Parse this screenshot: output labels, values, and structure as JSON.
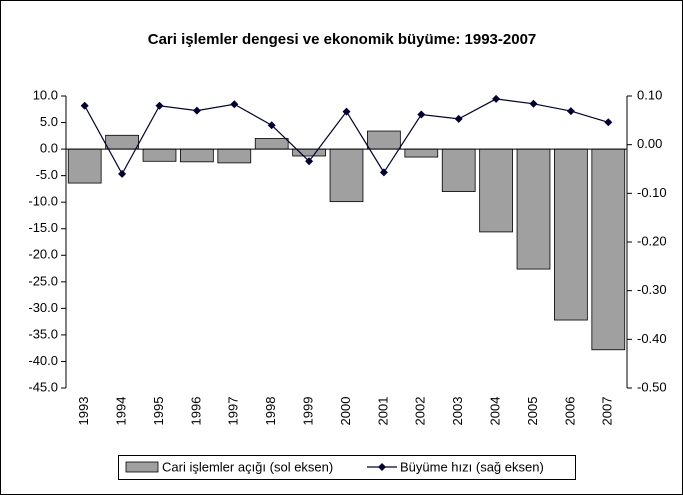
{
  "chart_data": {
    "type": "bar-line",
    "title": "Cari işlemler dengesi ve ekonomik büyüme: 1993-2007",
    "categories": [
      "1993",
      "1994",
      "1995",
      "1996",
      "1997",
      "1998",
      "1999",
      "2000",
      "2001",
      "2002",
      "2003",
      "2004",
      "2005",
      "2006",
      "2007"
    ],
    "series": [
      {
        "name": "Cari işlemler açığı (sol eksen)",
        "type": "bar",
        "color": "#a0a0a0",
        "values": [
          -6.4,
          2.6,
          -2.3,
          -2.4,
          -2.6,
          2.0,
          -1.3,
          -9.9,
          3.4,
          -1.5,
          -8.0,
          -15.6,
          -22.6,
          -32.2,
          -37.8
        ]
      },
      {
        "name": "Büyüme hızı (sağ eksen)",
        "type": "line",
        "axis": "y2",
        "color": "#000033",
        "values": [
          0.08,
          -0.06,
          0.08,
          0.07,
          0.083,
          0.04,
          -0.034,
          0.068,
          -0.057,
          0.062,
          0.053,
          0.094,
          0.084,
          0.069,
          0.046
        ]
      }
    ],
    "ylim": [
      -45,
      10
    ],
    "yticks": [
      {
        "value": 10,
        "label": "10.0"
      },
      {
        "value": 5,
        "label": "5.0"
      },
      {
        "value": 0,
        "label": "0.0"
      },
      {
        "value": -5,
        "label": "-5.0"
      },
      {
        "value": -10,
        "label": "-10.0"
      },
      {
        "value": -15,
        "label": "-15.0"
      },
      {
        "value": -20,
        "label": "-20.0"
      },
      {
        "value": -25,
        "label": "-25.0"
      },
      {
        "value": -30,
        "label": "-30.0"
      },
      {
        "value": -35,
        "label": "-35.0"
      },
      {
        "value": -40,
        "label": "-40.0"
      },
      {
        "value": -45,
        "label": "-45.0"
      }
    ],
    "y2lim": [
      -0.5,
      0.1
    ],
    "y2ticks": [
      {
        "value": 0.1,
        "label": "0.10"
      },
      {
        "value": 0,
        "label": "0.00"
      },
      {
        "value": -0.1,
        "label": "-0.10"
      },
      {
        "value": -0.2,
        "label": "-0.20"
      },
      {
        "value": -0.3,
        "label": "-0.30"
      },
      {
        "value": -0.4,
        "label": "-0.40"
      },
      {
        "value": -0.5,
        "label": "-0.50"
      }
    ],
    "legend": "bottom"
  }
}
